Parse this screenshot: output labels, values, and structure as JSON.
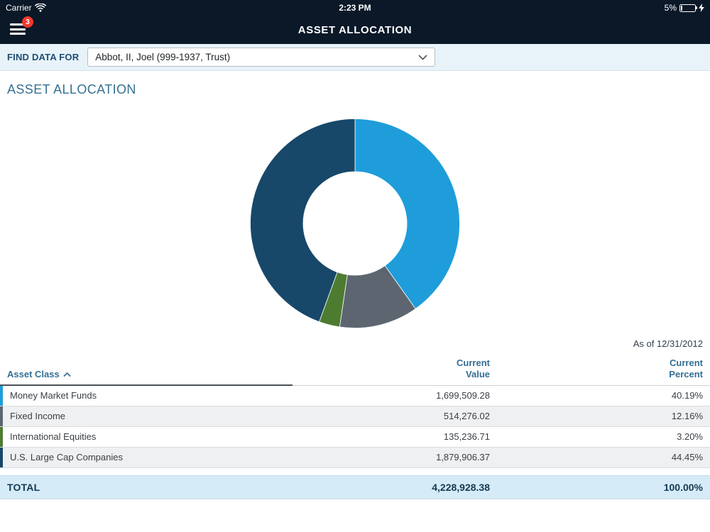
{
  "status_bar": {
    "carrier": "Carrier",
    "time": "2:23 PM",
    "battery_percent": "5%"
  },
  "nav": {
    "title": "ASSET ALLOCATION",
    "menu_badge": "3"
  },
  "find_data": {
    "label": "FIND DATA FOR",
    "selected_value": "Abbot, II, Joel (999-1937, Trust)"
  },
  "page": {
    "section_heading": "ASSET ALLOCATION",
    "as_of": "As of 12/31/2012"
  },
  "chart_data": {
    "type": "pie",
    "variant": "donut",
    "categories": [
      "Money Market Funds",
      "Fixed Income",
      "International Equities",
      "U.S. Large Cap Companies"
    ],
    "values": [
      40.19,
      12.16,
      3.2,
      44.45
    ],
    "colors": [
      "#1e9dda",
      "#5d6670",
      "#4d7c31",
      "#174869"
    ],
    "start_angle_deg": 0,
    "direction": "clockwise",
    "legend": "none",
    "title": "Asset Allocation",
    "as_of": "12/31/2012"
  },
  "table": {
    "header": {
      "asset_class": "Asset Class",
      "current_value_line1": "Current",
      "current_value_line2": "Value",
      "current_percent_line1": "Current",
      "current_percent_line2": "Percent"
    },
    "rows": [
      {
        "asset_class": "Money Market Funds",
        "current_value": "1,699,509.28",
        "current_percent": "40.19%",
        "color": "#1e9dda"
      },
      {
        "asset_class": "Fixed Income",
        "current_value": "514,276.02",
        "current_percent": "12.16%",
        "color": "#5d6670"
      },
      {
        "asset_class": "International Equities",
        "current_value": "135,236.71",
        "current_percent": "3.20%",
        "color": "#4d7c31"
      },
      {
        "asset_class": "U.S. Large Cap Companies",
        "current_value": "1,879,906.37",
        "current_percent": "44.45%",
        "color": "#174869"
      }
    ],
    "total": {
      "label": "TOTAL",
      "current_value": "4,228,928.38",
      "current_percent": "100.00%"
    }
  }
}
